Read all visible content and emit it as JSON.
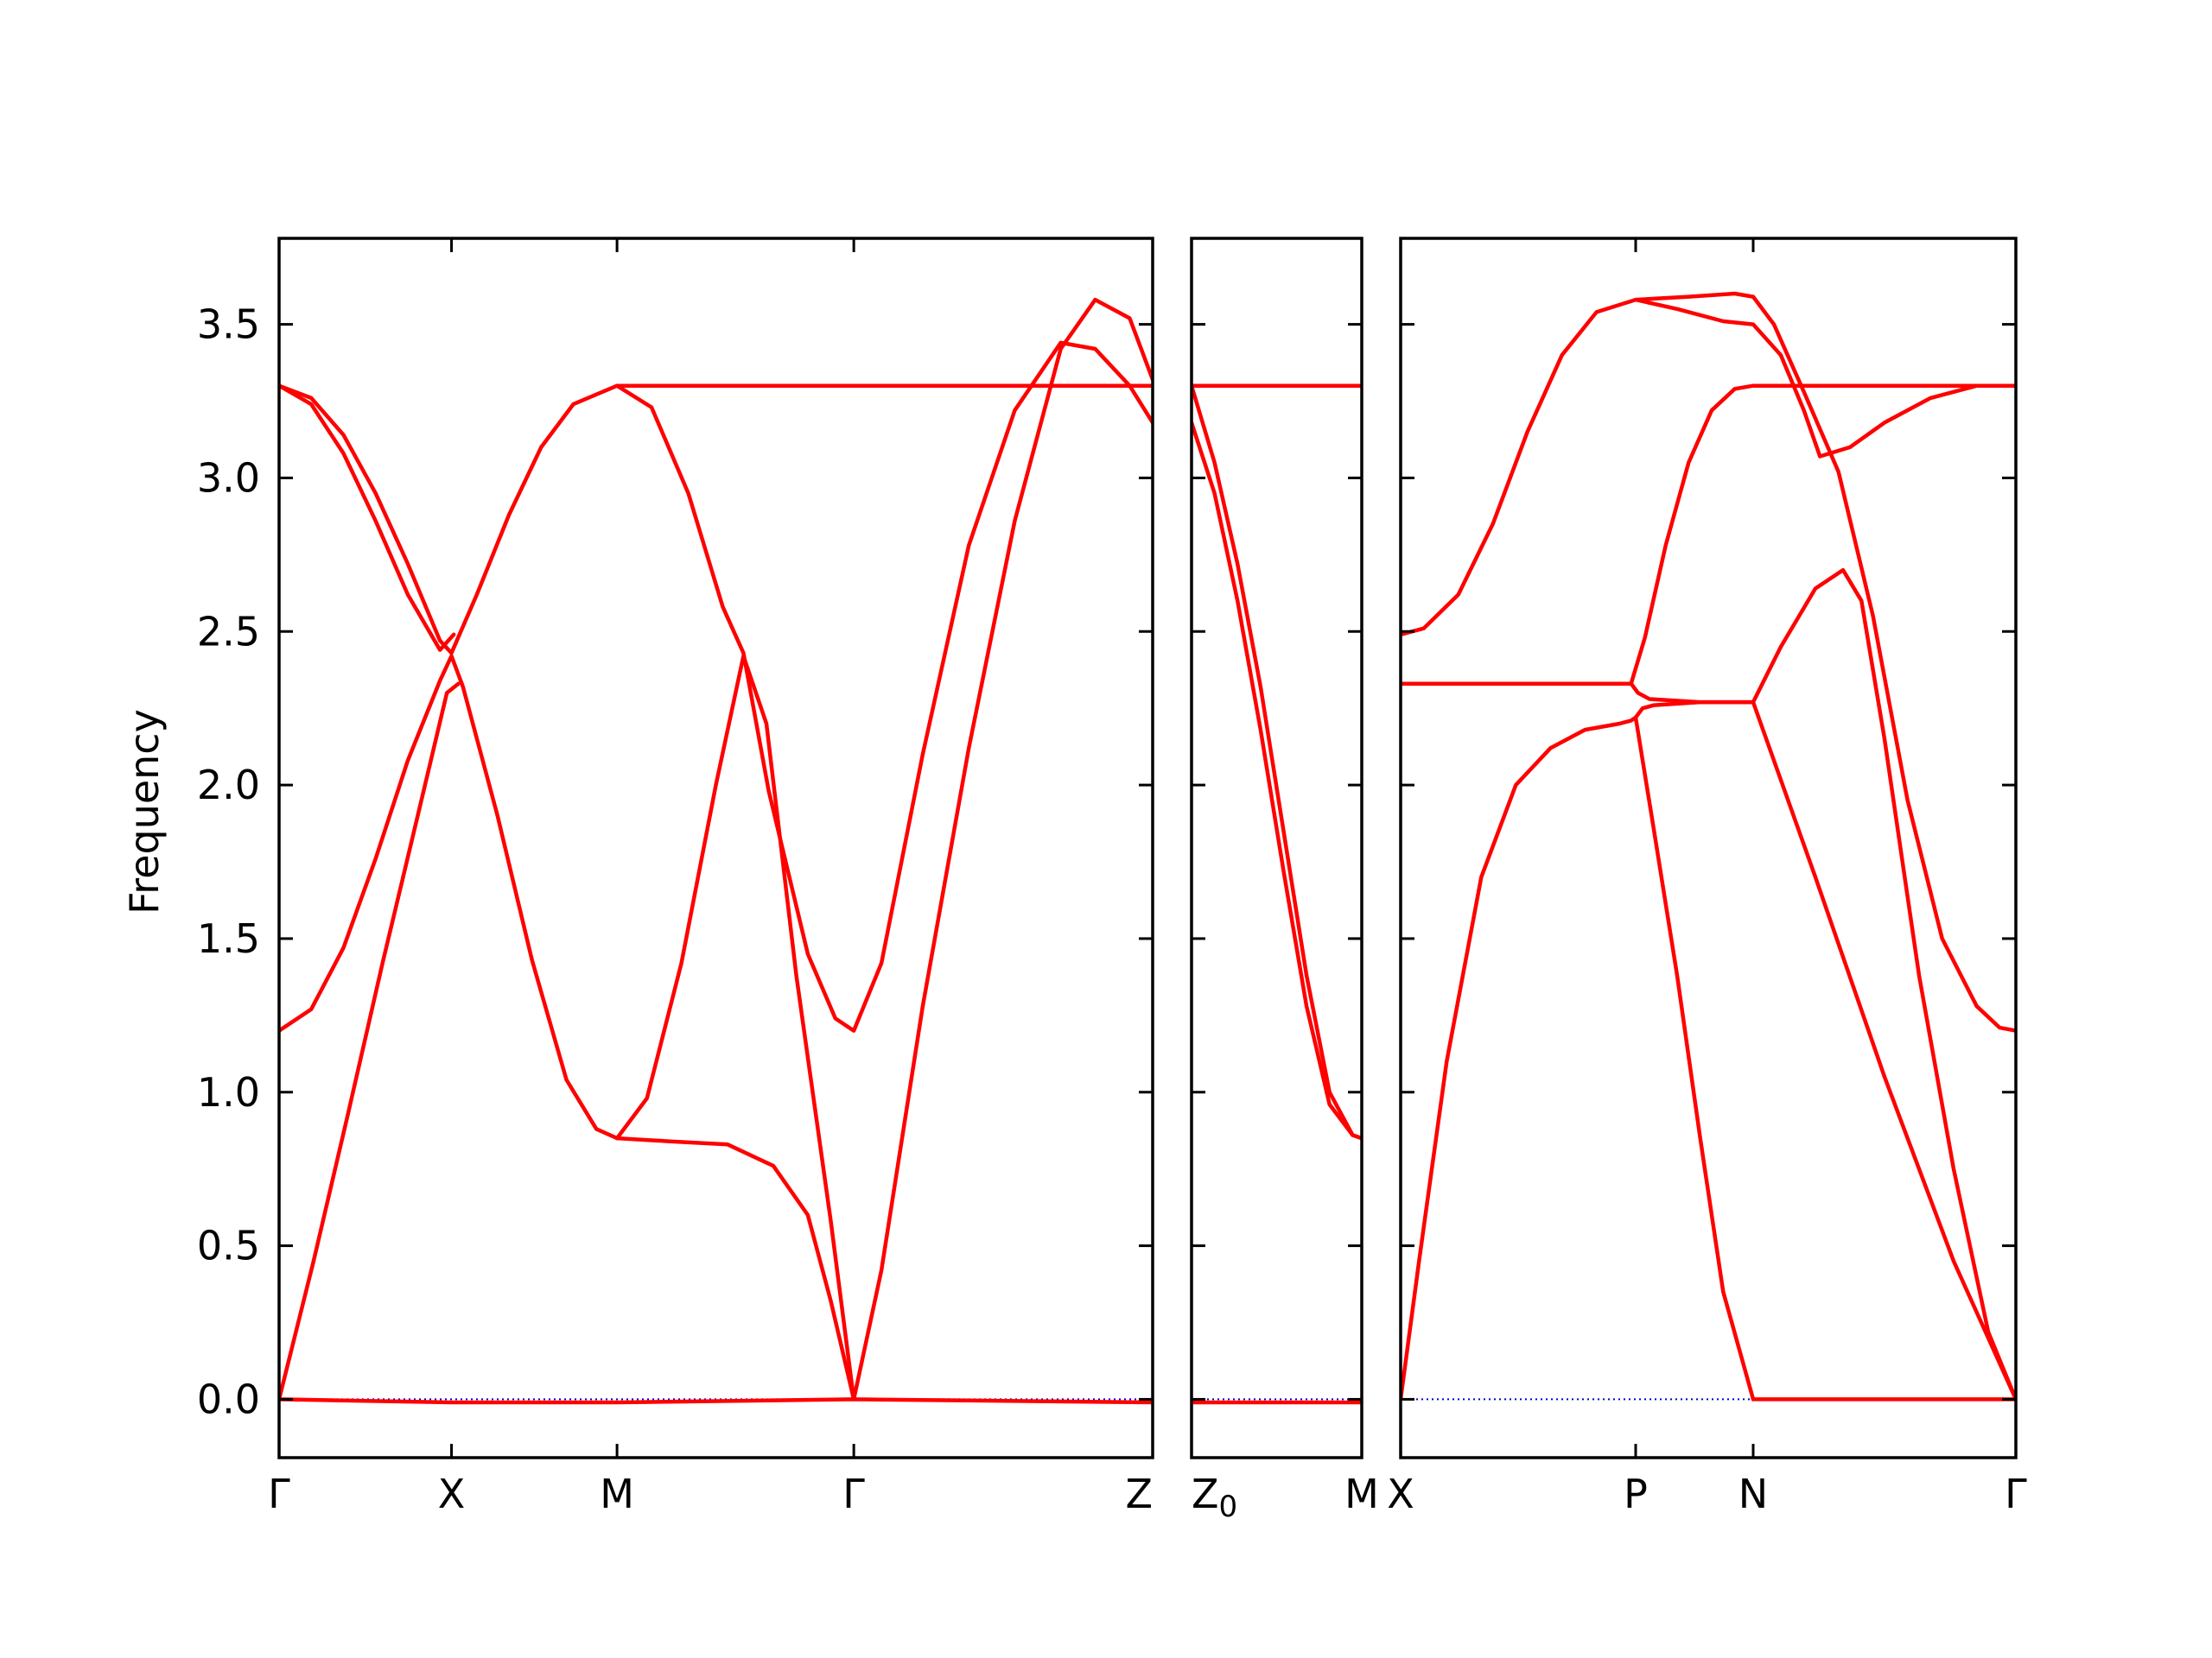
{
  "chart_data": {
    "type": "line",
    "ylabel": "Frequency",
    "ylim": [
      -0.19,
      3.78
    ],
    "yticks": [
      0.0,
      0.5,
      1.0,
      1.5,
      2.0,
      2.5,
      3.0,
      3.5
    ],
    "ytick_labels": [
      "0.0",
      "0.5",
      "1.0",
      "1.5",
      "2.0",
      "2.5",
      "3.0",
      "3.5"
    ],
    "grid": false,
    "colors": {
      "bands": "#ff0000",
      "zero_line": "#0000cc",
      "axes": "#000000"
    },
    "panels": [
      {
        "xlim": [
          0,
          3.8
        ],
        "ticks": [
          {
            "x": 0.0,
            "label": "Γ"
          },
          {
            "x": 0.75,
            "label": "X"
          },
          {
            "x": 1.47,
            "label": "M"
          },
          {
            "x": 2.5,
            "label": "Γ"
          },
          {
            "x": 3.8,
            "label": "Z"
          }
        ],
        "series": [
          {
            "x": [
              0,
              0.14,
              0.28,
              0.42,
              0.56,
              0.7,
              0.75,
              0.86,
              1.0,
              1.14,
              1.28,
              1.47
            ],
            "y": [
              3.3,
              3.26,
              3.14,
              2.95,
              2.72,
              2.47,
              2.43,
              2.62,
              2.88,
              3.1,
              3.24,
              3.3
            ]
          },
          {
            "x": [
              0,
              0.14,
              0.28,
              0.42,
              0.56,
              0.7,
              0.76
            ],
            "y": [
              3.3,
              3.24,
              3.08,
              2.86,
              2.62,
              2.44,
              2.49
            ]
          },
          {
            "x": [
              0,
              0.14,
              0.28,
              0.42,
              0.56,
              0.7,
              0.75,
              0.8,
              0.95,
              1.1,
              1.25,
              1.38,
              1.47
            ],
            "y": [
              1.2,
              1.27,
              1.47,
              1.76,
              2.08,
              2.34,
              2.42,
              2.32,
              1.9,
              1.43,
              1.04,
              0.88,
              0.85
            ]
          },
          {
            "x": [
              0,
              0.15,
              0.3,
              0.45,
              0.6,
              0.73,
              0.78
            ],
            "y": [
              0.0,
              0.45,
              0.93,
              1.42,
              1.89,
              2.3,
              2.33
            ]
          },
          {
            "x": [
              1.47,
              1.62,
              1.78,
              1.93,
              2.02,
              2.13,
              2.3,
              2.42,
              2.5,
              2.62,
              2.8,
              3.0,
              3.2,
              3.4,
              3.55,
              3.7,
              3.8
            ],
            "y": [
              3.3,
              3.23,
              2.95,
              2.58,
              2.43,
              1.98,
              1.45,
              1.24,
              1.2,
              1.42,
              2.1,
              2.78,
              3.22,
              3.44,
              3.42,
              3.3,
              3.18
            ]
          },
          {
            "x": [
              1.47,
              1.6,
              1.75,
              1.9,
              2.02,
              2.12,
              2.25,
              2.4,
              2.5,
              2.62,
              2.8,
              3.0,
              3.2,
              3.4,
              3.55,
              3.7,
              3.8
            ],
            "y": [
              0.85,
              0.98,
              1.42,
              2.0,
              2.42,
              2.2,
              1.38,
              0.58,
              0.0,
              0.42,
              1.28,
              2.12,
              2.86,
              3.42,
              3.58,
              3.52,
              3.32
            ]
          },
          {
            "x": [
              1.47,
              1.7,
              1.95,
              2.15,
              2.3,
              2.4,
              2.5
            ],
            "y": [
              0.85,
              0.84,
              0.83,
              0.76,
              0.6,
              0.32,
              0.0
            ]
          },
          {
            "x": [
              1.47,
              2.5,
              3.8
            ],
            "y": [
              3.3,
              3.3,
              3.3
            ]
          },
          {
            "x": [
              0,
              0.75,
              1.47,
              2.5,
              3.8
            ],
            "y": [
              0.0,
              -0.01,
              -0.01,
              0.0,
              -0.01
            ]
          }
        ]
      },
      {
        "xlim": [
          0,
          0.74
        ],
        "ticks": [
          {
            "x": 0.0,
            "label": "Z₀"
          },
          {
            "x": 0.74,
            "label": "M"
          }
        ],
        "series": [
          {
            "x": [
              0,
              0.74
            ],
            "y": [
              3.3,
              3.3
            ]
          },
          {
            "x": [
              0,
              0.1,
              0.2,
              0.3,
              0.4,
              0.5,
              0.6,
              0.7,
              0.74
            ],
            "y": [
              3.3,
              3.05,
              2.72,
              2.32,
              1.85,
              1.38,
              1.0,
              0.86,
              0.85
            ]
          },
          {
            "x": [
              0,
              0.1,
              0.2,
              0.3,
              0.4,
              0.5,
              0.6,
              0.7,
              0.74
            ],
            "y": [
              3.18,
              2.95,
              2.6,
              2.18,
              1.72,
              1.28,
              0.96,
              0.86,
              0.85
            ]
          },
          {
            "x": [
              0,
              0.74
            ],
            "y": [
              -0.01,
              -0.01
            ]
          }
        ]
      },
      {
        "xlim": [
          0,
          2.67
        ],
        "ticks": [
          {
            "x": 0.0,
            "label": "X"
          },
          {
            "x": 1.02,
            "label": "P"
          },
          {
            "x": 1.53,
            "label": "N"
          },
          {
            "x": 2.67,
            "label": "Γ"
          }
        ],
        "series": [
          {
            "x": [
              0,
              0.1,
              0.25,
              0.4,
              0.55,
              0.7,
              0.85,
              1.02,
              1.2,
              1.4,
              1.53,
              1.65,
              1.75,
              1.82,
              1.95,
              2.1,
              2.3,
              2.5,
              2.67
            ],
            "y": [
              2.49,
              2.51,
              2.62,
              2.85,
              3.15,
              3.4,
              3.54,
              3.58,
              3.55,
              3.51,
              3.5,
              3.4,
              3.22,
              3.07,
              3.1,
              3.18,
              3.26,
              3.3,
              3.3
            ]
          },
          {
            "x": [
              1.02,
              1.25,
              1.45,
              1.53,
              1.62,
              1.75,
              1.9,
              2.05,
              2.2,
              2.35,
              2.5,
              2.6,
              2.67
            ],
            "y": [
              3.58,
              3.59,
              3.6,
              3.59,
              3.5,
              3.28,
              3.02,
              2.55,
              1.95,
              1.5,
              1.28,
              1.21,
              1.2
            ]
          },
          {
            "x": [
              1.53,
              2.1,
              2.67
            ],
            "y": [
              3.3,
              3.3,
              3.3
            ]
          },
          {
            "x": [
              1.0,
              1.06,
              1.15,
              1.25,
              1.35,
              1.45,
              1.53
            ],
            "y": [
              2.33,
              2.48,
              2.78,
              3.05,
              3.22,
              3.29,
              3.3
            ]
          },
          {
            "x": [
              0,
              0.5,
              1.0
            ],
            "y": [
              2.33,
              2.33,
              2.33
            ]
          },
          {
            "x": [
              1.0,
              1.03,
              1.08,
              1.3,
              1.53
            ],
            "y": [
              2.33,
              2.3,
              2.28,
              2.27,
              2.27
            ]
          },
          {
            "x": [
              0,
              0.08,
              0.2,
              0.35,
              0.5,
              0.65,
              0.8,
              0.95,
              1.0,
              1.02,
              1.05,
              1.1,
              1.3,
              1.53
            ],
            "y": [
              0.0,
              0.45,
              1.1,
              1.7,
              2.0,
              2.12,
              2.18,
              2.2,
              2.21,
              2.22,
              2.25,
              2.26,
              2.27,
              2.27
            ]
          },
          {
            "x": [
              1.02,
              1.1,
              1.2,
              1.3,
              1.4,
              1.53
            ],
            "y": [
              2.22,
              1.85,
              1.38,
              0.85,
              0.35,
              0.0
            ]
          },
          {
            "x": [
              1.53,
              1.65,
              1.8,
              1.92,
              2.0,
              2.1,
              2.25,
              2.4,
              2.55,
              2.67
            ],
            "y": [
              2.27,
              2.45,
              2.64,
              2.7,
              2.6,
              2.15,
              1.38,
              0.75,
              0.22,
              0.0
            ]
          },
          {
            "x": [
              1.53,
              1.8,
              2.1,
              2.4,
              2.67
            ],
            "y": [
              2.27,
              1.7,
              1.05,
              0.45,
              0.0
            ]
          },
          {
            "x": [
              1.53,
              2.1,
              2.67
            ],
            "y": [
              0.0,
              0.0,
              0.0
            ]
          }
        ]
      }
    ]
  }
}
